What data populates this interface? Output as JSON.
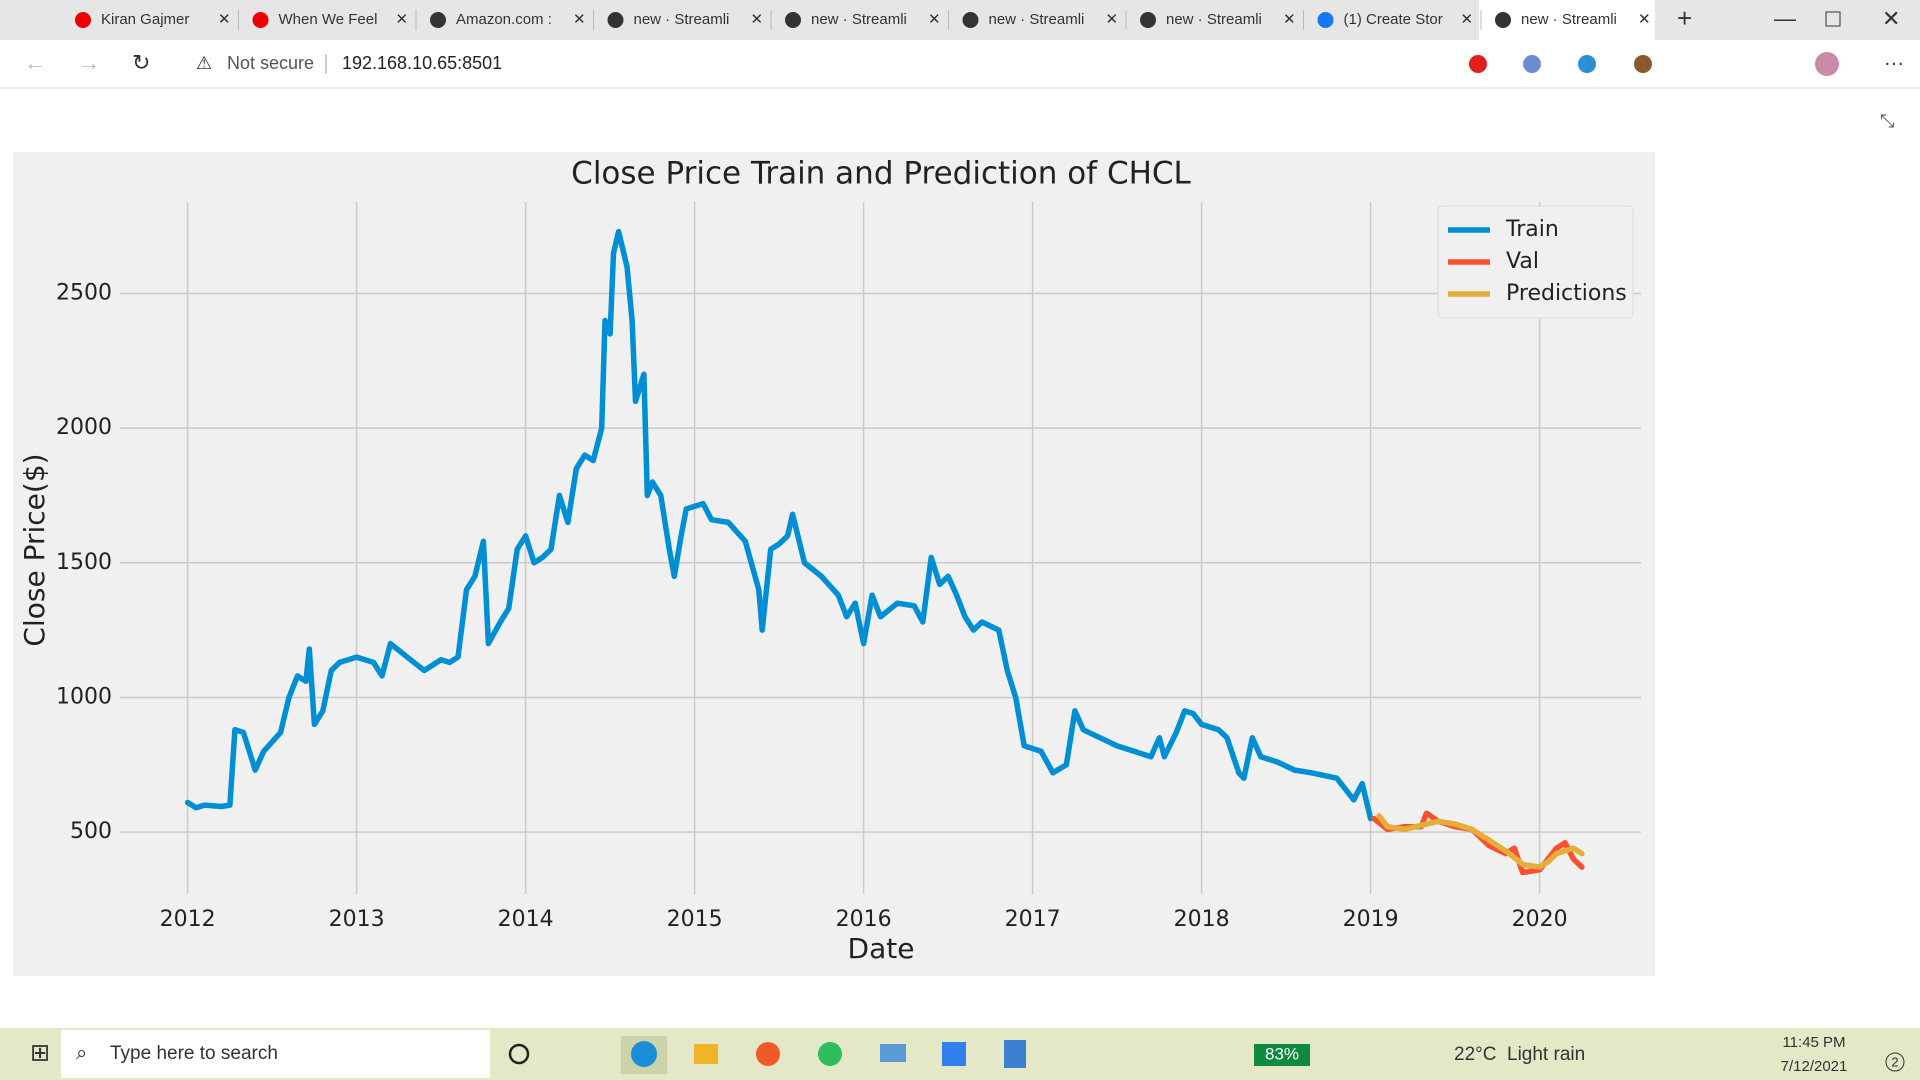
{
  "browser": {
    "tabs": [
      "Kiran Gajmer",
      "When We Feel",
      "Amazon.com :",
      "new · Streamli",
      "new · Streamli",
      "new · Streamli",
      "new · Streamli",
      "(1) Create Stor",
      "new · Streamli"
    ],
    "address": {
      "warning": "Not secure",
      "url": "192.168.10.65:8501"
    }
  },
  "taskbar": {
    "search": "Type here to search",
    "battery": "83%",
    "weather": "22°C  Light rain",
    "time": "11:45 PM",
    "date": "7/12/2021",
    "notifications": "2"
  },
  "chart_data": {
    "type": "line",
    "title": "Close Price Train and Prediction of CHCL",
    "x_label": "Date",
    "y_label": "Close Price($)",
    "xlim": [
      2011.6,
      2020.6
    ],
    "xticks": [
      2012,
      2013,
      2014,
      2015,
      2016,
      2017,
      2018,
      2019,
      2020
    ],
    "ylim": [
      270,
      2840
    ],
    "yticks": [
      500,
      1000,
      1500,
      2000,
      2500
    ],
    "grid": true,
    "legend": "upper right",
    "series": [
      {
        "name": "Train",
        "color": "#008fd5",
        "x": [
          2012.0,
          2012.05,
          2012.1,
          2012.2,
          2012.25,
          2012.28,
          2012.33,
          2012.4,
          2012.45,
          2012.55,
          2012.6,
          2012.65,
          2012.7,
          2012.72,
          2012.75,
          2012.8,
          2012.85,
          2012.9,
          2013.0,
          2013.1,
          2013.15,
          2013.2,
          2013.3,
          2013.4,
          2013.5,
          2013.55,
          2013.6,
          2013.65,
          2013.7,
          2013.75,
          2013.78,
          2013.85,
          2013.9,
          2013.95,
          2014.0,
          2014.05,
          2014.1,
          2014.15,
          2014.2,
          2014.25,
          2014.3,
          2014.35,
          2014.4,
          2014.45,
          2014.47,
          2014.5,
          2014.52,
          2014.55,
          2014.6,
          2014.63,
          2014.65,
          2014.7,
          2014.72,
          2014.75,
          2014.8,
          2014.85,
          2014.88,
          2014.92,
          2014.95,
          2015.05,
          2015.1,
          2015.2,
          2015.3,
          2015.38,
          2015.4,
          2015.45,
          2015.5,
          2015.55,
          2015.58,
          2015.65,
          2015.75,
          2015.85,
          2015.9,
          2015.95,
          2016.0,
          2016.05,
          2016.1,
          2016.2,
          2016.3,
          2016.35,
          2016.4,
          2016.45,
          2016.5,
          2016.55,
          2016.6,
          2016.65,
          2016.7,
          2016.8,
          2016.85,
          2016.9,
          2016.95,
          2017.05,
          2017.12,
          2017.2,
          2017.25,
          2017.3,
          2017.4,
          2017.5,
          2017.6,
          2017.7,
          2017.75,
          2017.78,
          2017.85,
          2017.9,
          2017.95,
          2018.0,
          2018.1,
          2018.15,
          2018.22,
          2018.25,
          2018.3,
          2018.35,
          2018.45,
          2018.55,
          2018.65,
          2018.8,
          2018.9,
          2018.95,
          2019.0
        ],
        "values": [
          610,
          590,
          600,
          595,
          600,
          880,
          870,
          730,
          800,
          870,
          1000,
          1080,
          1060,
          1180,
          900,
          950,
          1100,
          1130,
          1150,
          1130,
          1080,
          1200,
          1150,
          1100,
          1140,
          1130,
          1150,
          1400,
          1450,
          1580,
          1200,
          1280,
          1330,
          1550,
          1600,
          1500,
          1520,
          1550,
          1750,
          1650,
          1850,
          1900,
          1880,
          2000,
          2400,
          2350,
          2650,
          2730,
          2600,
          2400,
          2100,
          2200,
          1750,
          1800,
          1750,
          1550,
          1450,
          1600,
          1700,
          1720,
          1660,
          1650,
          1580,
          1400,
          1250,
          1550,
          1570,
          1600,
          1680,
          1500,
          1450,
          1380,
          1300,
          1350,
          1200,
          1380,
          1300,
          1350,
          1340,
          1280,
          1520,
          1420,
          1450,
          1380,
          1300,
          1250,
          1280,
          1250,
          1100,
          1000,
          820,
          800,
          720,
          750,
          950,
          880,
          850,
          820,
          800,
          780,
          850,
          780,
          870,
          950,
          940,
          900,
          880,
          850,
          720,
          700,
          850,
          780,
          760,
          730,
          720,
          700,
          620,
          680,
          550
        ]
      },
      {
        "name": "Val",
        "color": "#fc4f30",
        "x": [
          2019.02,
          2019.1,
          2019.2,
          2019.3,
          2019.33,
          2019.4,
          2019.5,
          2019.6,
          2019.7,
          2019.8,
          2019.85,
          2019.9,
          2020.0,
          2020.05,
          2020.1,
          2020.15,
          2020.2,
          2020.25
        ],
        "values": [
          550,
          510,
          520,
          520,
          570,
          540,
          520,
          510,
          450,
          420,
          440,
          350,
          360,
          400,
          440,
          460,
          400,
          370
        ]
      },
      {
        "name": "Predictions",
        "color": "#e5ae38",
        "x": [
          2019.05,
          2019.1,
          2019.2,
          2019.3,
          2019.4,
          2019.5,
          2019.6,
          2019.7,
          2019.8,
          2019.9,
          2020.0,
          2020.05,
          2020.1,
          2020.2,
          2020.25
        ],
        "values": [
          560,
          520,
          510,
          525,
          540,
          530,
          510,
          470,
          430,
          380,
          370,
          390,
          420,
          440,
          420
        ]
      }
    ]
  }
}
